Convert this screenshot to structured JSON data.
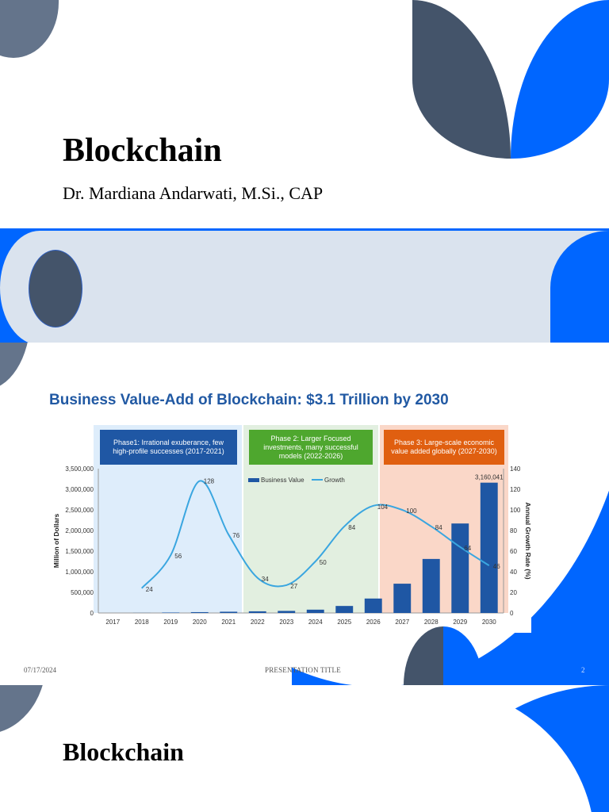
{
  "slide1": {
    "title": "Blockchain",
    "subtitle": "Dr. Mardiana Andarwati, M.Si., CAP"
  },
  "slide3": {
    "footer": {
      "date": "07/17/2024",
      "title": "PRESENTATION TITLE",
      "page": "2"
    }
  },
  "slide4": {
    "title": "Blockchain"
  },
  "colors": {
    "accent_blue": "#0066ff",
    "slate": "#44546a",
    "gray": "#64748b",
    "band": "#dae3ee",
    "chart_title": "#2159a3",
    "bar": "#1f57a4",
    "line": "#3aa6e0",
    "phase1": "#1f57a4",
    "phase2": "#4ea72e",
    "phase3": "#e05f10"
  },
  "chart_data": {
    "type": "bar",
    "title": "Business Value-Add of Blockchain: $3.1 Trillion by 2030",
    "xlabel": "",
    "ylabel": "Million of Dollars",
    "y2label": "Annual Growth Rate (%)",
    "ylim": [
      0,
      3500000
    ],
    "y2lim": [
      0,
      140
    ],
    "yticks": [
      "0",
      "500,000",
      "1,000,000",
      "1,500,000",
      "2,000,000",
      "2,500,000",
      "3,000,000",
      "3,500,000"
    ],
    "y2ticks": [
      "0",
      "20",
      "40",
      "60",
      "80",
      "100",
      "120",
      "140"
    ],
    "categories": [
      "2017",
      "2018",
      "2019",
      "2020",
      "2021",
      "2022",
      "2023",
      "2024",
      "2025",
      "2026",
      "2027",
      "2028",
      "2029",
      "2030"
    ],
    "legend": [
      "Business Value",
      "Growth"
    ],
    "legend_position": "top-center",
    "grid": false,
    "series": [
      {
        "name": "Business Value",
        "type": "bar",
        "axis": "left",
        "values": [
          0,
          2000,
          10000,
          20000,
          30000,
          40000,
          50000,
          80000,
          170000,
          350000,
          710000,
          1310000,
          2170000,
          3160041
        ],
        "value_note": "Only the 2030 value (3,160,041) is labeled on the chart; all other bar values are estimates from bar heights."
      },
      {
        "name": "Growth",
        "type": "line",
        "axis": "right",
        "categories": [
          "2018",
          "2019",
          "2020",
          "2021",
          "2022",
          "2023",
          "2024",
          "2025",
          "2026",
          "2027",
          "2028",
          "2029",
          "2030"
        ],
        "values": [
          24,
          56,
          128,
          76,
          34,
          27,
          50,
          84,
          104,
          100,
          84,
          64,
          46
        ]
      }
    ],
    "annotations": [
      {
        "label": "3,160,041",
        "at": "2030"
      }
    ],
    "phases": [
      {
        "label": "Phase1: Irrational exuberance, few high-profile successes (2017-2021)",
        "range": [
          "2017",
          "2021"
        ]
      },
      {
        "label": "Phase 2: Larger Focused investments, many successful models (2022-2026)",
        "range": [
          "2022",
          "2026"
        ]
      },
      {
        "label": "Phase 3: Large-scale economic value added globally (2027-2030)",
        "range": [
          "2027",
          "2030"
        ]
      }
    ]
  }
}
